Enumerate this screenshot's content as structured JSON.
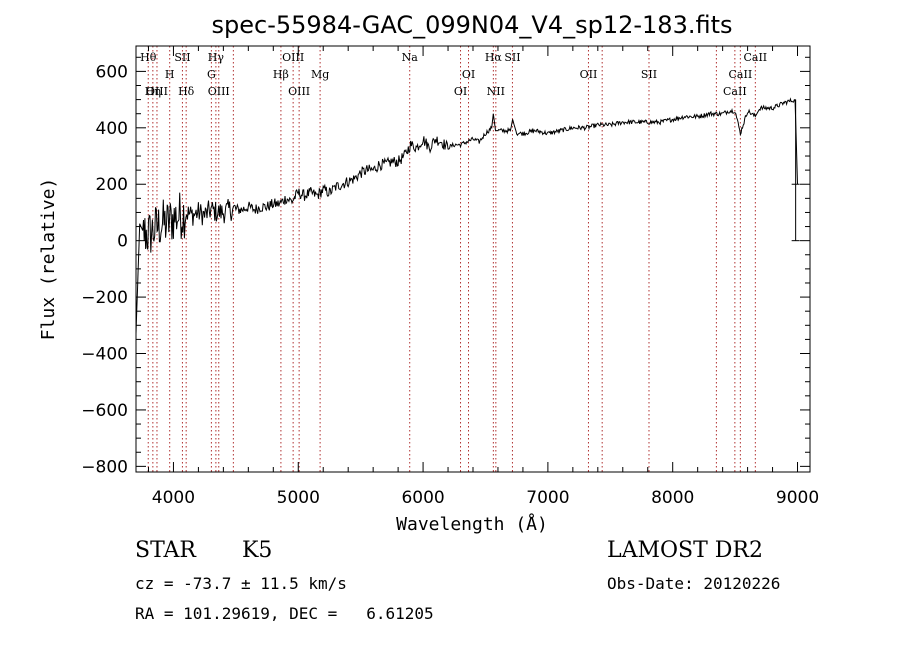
{
  "chart_data": {
    "type": "line",
    "title": "spec-55984-GAC_099N04_V4_sp12-183.fits",
    "xlabel": "Wavelength (Å)",
    "ylabel": "Flux (relative)",
    "xlim": [
      3700,
      9100
    ],
    "ylim": [
      -820,
      690
    ],
    "x_ticks": [
      4000,
      5000,
      6000,
      7000,
      8000,
      9000
    ],
    "y_ticks": [
      -800,
      -600,
      -400,
      -200,
      0,
      200,
      400,
      600
    ],
    "grid": false,
    "series": [
      {
        "x": [
          3700,
          3730,
          3760,
          3800,
          3850,
          3900,
          3950,
          4000,
          4050,
          4100,
          4150,
          4200,
          4250,
          4300,
          4350,
          4400,
          4450,
          4500,
          4550,
          4600,
          4650,
          4700,
          4750,
          4800,
          4850,
          4900,
          4950,
          5000,
          5050,
          5100,
          5150,
          5200,
          5250,
          5300,
          5350,
          5400,
          5450,
          5500,
          5550,
          5600,
          5650,
          5700,
          5750,
          5800,
          5850,
          5900,
          5950,
          6000,
          6050,
          6100,
          6150,
          6200,
          6250,
          6300,
          6350,
          6400,
          6450,
          6500,
          6550,
          6563,
          6580,
          6600,
          6650,
          6700,
          6717,
          6750,
          6800,
          6900,
          7000,
          7100,
          7200,
          7300,
          7400,
          7500,
          7600,
          7700,
          7800,
          7900,
          8000,
          8100,
          8200,
          8300,
          8400,
          8450,
          8500,
          8542,
          8600,
          8662,
          8700,
          8800,
          8900,
          8980,
          9000
        ],
        "y": [
          -330,
          60,
          30,
          20,
          40,
          60,
          60,
          80,
          90,
          100,
          90,
          100,
          90,
          110,
          100,
          100,
          110,
          110,
          110,
          120,
          110,
          120,
          120,
          130,
          130,
          150,
          140,
          170,
          160,
          170,
          160,
          180,
          170,
          190,
          200,
          210,
          220,
          240,
          250,
          250,
          270,
          270,
          280,
          280,
          300,
          340,
          330,
          360,
          330,
          360,
          350,
          330,
          340,
          340,
          350,
          360,
          350,
          380,
          400,
          450,
          390,
          390,
          390,
          390,
          430,
          380,
          380,
          390,
          380,
          390,
          400,
          400,
          410,
          410,
          420,
          420,
          420,
          420,
          430,
          440,
          440,
          450,
          450,
          460,
          460,
          380,
          460,
          440,
          470,
          470,
          490,
          500,
          200
        ]
      }
    ],
    "lines": [
      {
        "label": "Hθ",
        "x": 3798,
        "row": 1
      },
      {
        "label": "Hη",
        "x": 3835,
        "row": 3
      },
      {
        "label": "OIII",
        "x": 3868,
        "row": 3
      },
      {
        "label": "H",
        "x": 3970,
        "row": 2
      },
      {
        "label": "SII",
        "x": 4072,
        "row": 1
      },
      {
        "label": "Hδ",
        "x": 4102,
        "row": 3
      },
      {
        "label": "Hγ",
        "x": 4340,
        "row": 1
      },
      {
        "label": "G",
        "x": 4304,
        "row": 2
      },
      {
        "label": "OIII",
        "x": 4363,
        "row": 3
      },
      {
        "label": "Hβ",
        "x": 4861,
        "row": 2
      },
      {
        "label": "OIII",
        "x": 4959,
        "row": 1
      },
      {
        "label": "OIII",
        "x": 5007,
        "row": 3
      },
      {
        "label": "Mg",
        "x": 5175,
        "row": 2
      },
      {
        "label": "Na",
        "x": 5893,
        "row": 1
      },
      {
        "label": "OI",
        "x": 6300,
        "row": 3
      },
      {
        "label": "OI",
        "x": 6364,
        "row": 2
      },
      {
        "label": "Hα",
        "x": 6563,
        "row": 1
      },
      {
        "label": "NII",
        "x": 6583,
        "row": 3
      },
      {
        "label": "SII",
        "x": 6716,
        "row": 1
      },
      {
        "label": "OII",
        "x": 7325,
        "row": 2
      },
      {
        "label": "SII",
        "x": 7810,
        "row": 2
      },
      {
        "label": "CaII",
        "x": 8498,
        "row": 3
      },
      {
        "label": "CaII",
        "x": 8542,
        "row": 2
      },
      {
        "label": "CaII",
        "x": 8662,
        "row": 1
      }
    ],
    "line_positions_extra": [
      4480,
      7435,
      8350
    ],
    "colors": {
      "spectrum": "#000000",
      "lines": "#b03030"
    }
  },
  "info": {
    "class": "STAR",
    "subclass": "K5",
    "survey": "LAMOST DR2",
    "redshift": "cz = -73.7 ± 11.5 km/s",
    "obs_date": "Obs-Date: 20120226",
    "coords": "RA = 101.29619, DEC =   6.61205"
  }
}
